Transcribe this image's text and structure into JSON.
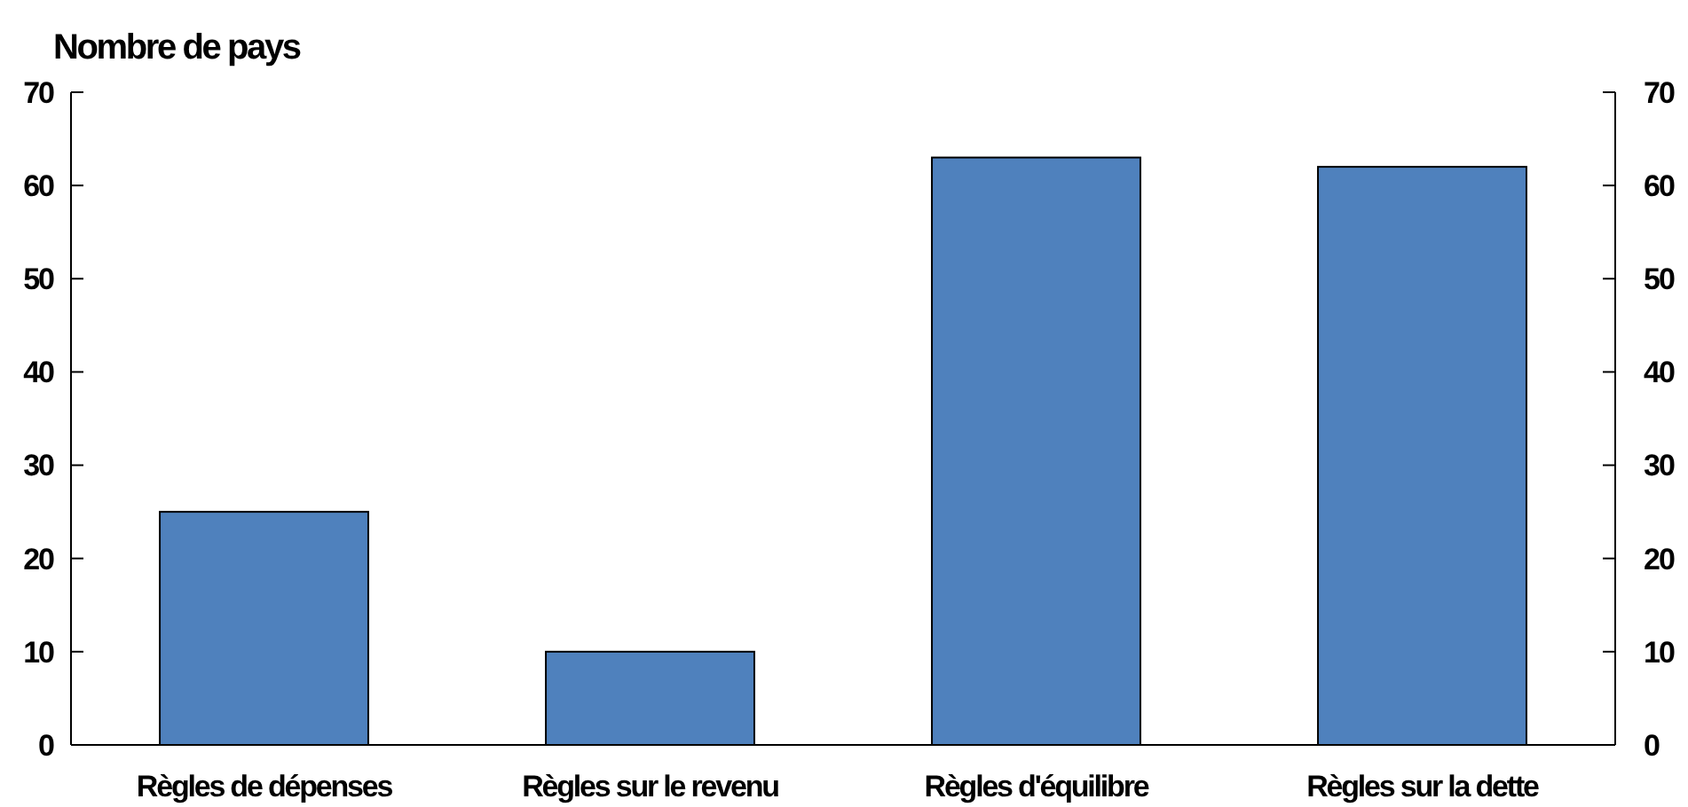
{
  "chart_data": {
    "type": "bar",
    "title": "Nombre de pays",
    "categories": [
      "Règles de dépenses",
      "Règles sur le revenu",
      "Règles d'équilibre",
      "Règles sur la dette"
    ],
    "values": [
      25,
      10,
      63,
      62
    ],
    "color": "#4f81bd",
    "ylim": [
      0,
      70
    ],
    "yticks": [
      0,
      10,
      20,
      30,
      40,
      50,
      60,
      70
    ],
    "y2lim": [
      0,
      70
    ],
    "y2ticks": [
      0,
      10,
      20,
      30,
      40,
      50,
      60,
      70
    ]
  }
}
